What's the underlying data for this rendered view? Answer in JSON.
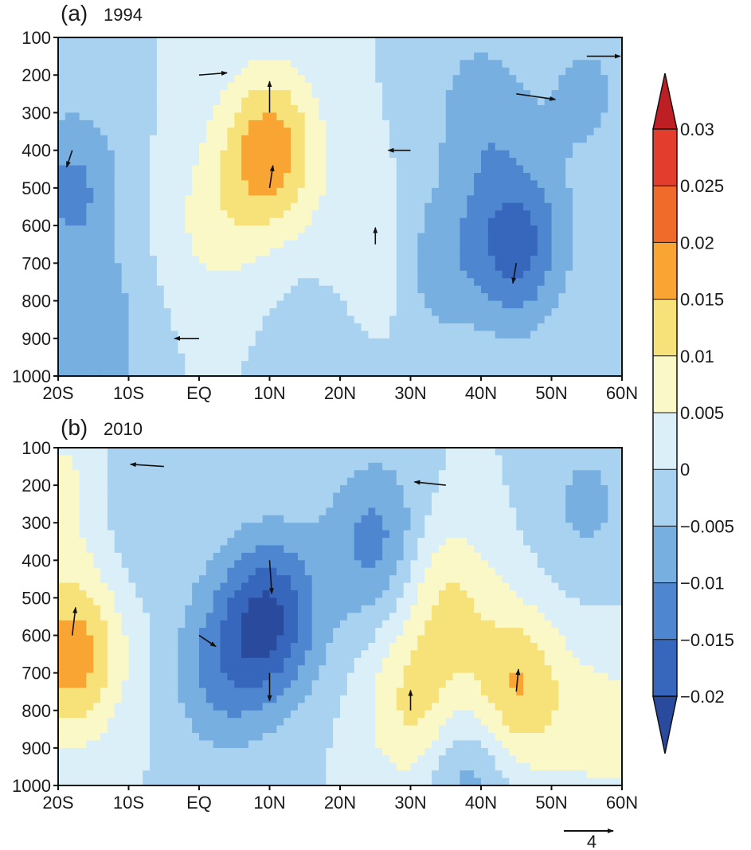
{
  "chart_data": [
    {
      "type": "heatmap",
      "panel_letter": "(a)",
      "panel_year": "1994",
      "x_ticks": [
        "20S",
        "10S",
        "EQ",
        "10N",
        "20N",
        "30N",
        "40N",
        "50N",
        "60N"
      ],
      "x_values": [
        -20,
        -10,
        0,
        10,
        20,
        30,
        40,
        50,
        60
      ],
      "y_ticks": [
        "100",
        "200",
        "300",
        "400",
        "500",
        "600",
        "700",
        "800",
        "900",
        "1000"
      ],
      "y_values": [
        100,
        200,
        300,
        400,
        500,
        600,
        700,
        800,
        900,
        1000
      ],
      "xlim": [
        -20,
        60
      ],
      "ylim": [
        100,
        1000
      ],
      "y_inverted": true,
      "anomaly_centers": [
        {
          "lat": 10,
          "p": 400,
          "value": 0.018
        },
        {
          "lat": 2,
          "p": 600,
          "value": 0.006
        },
        {
          "lat": 25,
          "p": 700,
          "value": 0.006
        },
        {
          "lat": -18,
          "p": 500,
          "value": -0.011
        },
        {
          "lat": -15,
          "p": 900,
          "value": -0.009
        },
        {
          "lat": 45,
          "p": 650,
          "value": -0.017
        },
        {
          "lat": 40,
          "p": 300,
          "value": -0.008
        },
        {
          "lat": 33,
          "p": 700,
          "value": -0.008
        },
        {
          "lat": 55,
          "p": 250,
          "value": -0.006
        },
        {
          "lat": 18,
          "p": 950,
          "value": -0.005
        }
      ],
      "vectors": [
        {
          "lat": 0,
          "p": 200,
          "u": 2.5,
          "w": 0.2
        },
        {
          "lat": 10,
          "p": 300,
          "u": 0.0,
          "w": 2.8
        },
        {
          "lat": 10,
          "p": 500,
          "u": 0.3,
          "w": 2.0
        },
        {
          "lat": 30,
          "p": 400,
          "u": -2.0,
          "w": 0.0
        },
        {
          "lat": 45,
          "p": 250,
          "u": 3.5,
          "w": -0.5
        },
        {
          "lat": 45,
          "p": 700,
          "u": -0.3,
          "w": -1.8
        },
        {
          "lat": 55,
          "p": 150,
          "u": 3.0,
          "w": 0.0
        },
        {
          "lat": 0,
          "p": 900,
          "u": -2.2,
          "w": 0.0
        },
        {
          "lat": -18,
          "p": 400,
          "u": -0.5,
          "w": -1.5
        },
        {
          "lat": 25,
          "p": 650,
          "u": 0.0,
          "w": 1.5
        }
      ]
    },
    {
      "type": "heatmap",
      "panel_letter": "(b)",
      "panel_year": "2010",
      "x_ticks": [
        "20S",
        "10S",
        "EQ",
        "10N",
        "20N",
        "30N",
        "40N",
        "50N",
        "60N"
      ],
      "x_values": [
        -20,
        -10,
        0,
        10,
        20,
        30,
        40,
        50,
        60
      ],
      "y_ticks": [
        "100",
        "200",
        "300",
        "400",
        "500",
        "600",
        "700",
        "800",
        "900",
        "1000"
      ],
      "y_values": [
        100,
        200,
        300,
        400,
        500,
        600,
        700,
        800,
        900,
        1000
      ],
      "xlim": [
        -20,
        60
      ],
      "ylim": [
        100,
        1000
      ],
      "y_inverted": true,
      "anomaly_centers": [
        {
          "lat": 10,
          "p": 550,
          "value": -0.02
        },
        {
          "lat": 3,
          "p": 700,
          "value": -0.01
        },
        {
          "lat": 25,
          "p": 350,
          "value": -0.012
        },
        {
          "lat": -18,
          "p": 650,
          "value": 0.018
        },
        {
          "lat": 45,
          "p": 750,
          "value": 0.016
        },
        {
          "lat": 31,
          "p": 800,
          "value": 0.012
        },
        {
          "lat": 35,
          "p": 500,
          "value": 0.01
        },
        {
          "lat": 38,
          "p": 950,
          "value": -0.01
        },
        {
          "lat": 58,
          "p": 850,
          "value": 0.007
        },
        {
          "lat": -8,
          "p": 250,
          "value": -0.005
        },
        {
          "lat": 55,
          "p": 250,
          "value": -0.006
        },
        {
          "lat": -19,
          "p": 200,
          "value": 0.006
        }
      ],
      "vectors": [
        {
          "lat": 10,
          "p": 400,
          "u": 0.2,
          "w": -3.0
        },
        {
          "lat": 10,
          "p": 700,
          "u": 0.0,
          "w": -2.5
        },
        {
          "lat": -18,
          "p": 600,
          "u": 0.3,
          "w": 2.5
        },
        {
          "lat": 45,
          "p": 750,
          "u": 0.2,
          "w": 2.0
        },
        {
          "lat": 35,
          "p": 200,
          "u": -2.8,
          "w": 0.3
        },
        {
          "lat": -5,
          "p": 150,
          "u": -3.0,
          "w": 0.2
        },
        {
          "lat": 30,
          "p": 800,
          "u": 0.0,
          "w": 1.8
        },
        {
          "lat": 0,
          "p": 600,
          "u": 1.5,
          "w": -1.0
        }
      ]
    }
  ],
  "colorbar": {
    "labels": [
      "0.03",
      "0.025",
      "0.02",
      "0.015",
      "0.01",
      "0.005",
      "0",
      "−0.005",
      "−0.01",
      "−0.015",
      "−0.02"
    ],
    "levels": [
      0.03,
      0.025,
      0.02,
      0.015,
      0.01,
      0.005,
      0,
      -0.005,
      -0.01,
      -0.015,
      -0.02
    ],
    "colors": [
      "#bd1f24",
      "#e33d2d",
      "#f06b2a",
      "#f9a534",
      "#f7e27a",
      "#fbf8c8",
      "#dbeff8",
      "#a9d2f0",
      "#76afe0",
      "#4e86d0",
      "#3766bd",
      "#2a4a9e"
    ]
  },
  "reference_vector": {
    "label": "4",
    "value": 4
  }
}
